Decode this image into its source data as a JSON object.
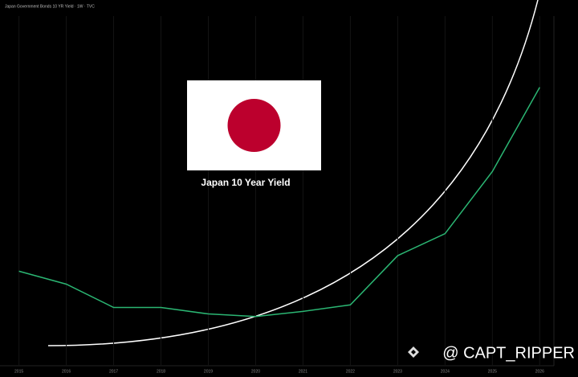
{
  "chart_data": {
    "type": "line",
    "title": "Japan Government Bonds 10 YR Yield · 1W · TVC",
    "annotation": "Japan 10 Year Yield",
    "watermark": "@ CAPT_RIPPER",
    "x": [
      2015,
      2016,
      2017,
      2018,
      2019,
      2020,
      2021,
      2022,
      2023,
      2024,
      2025,
      2026
    ],
    "series": [
      {
        "color": "#2bb673",
        "values": [
          0.33,
          0.23,
          0.05,
          0.05,
          0.0,
          -0.02,
          0.02,
          0.07,
          0.45,
          0.62,
          1.1,
          1.75
        ]
      }
    ],
    "xlim": [
      2014.6,
      2026.3
    ],
    "xticks": [
      2015,
      2016,
      2017,
      2018,
      2019,
      2020,
      2021,
      2022,
      2023,
      2024,
      2025,
      2026
    ],
    "ylim": [
      -0.4,
      2.3
    ],
    "grid": true
  }
}
